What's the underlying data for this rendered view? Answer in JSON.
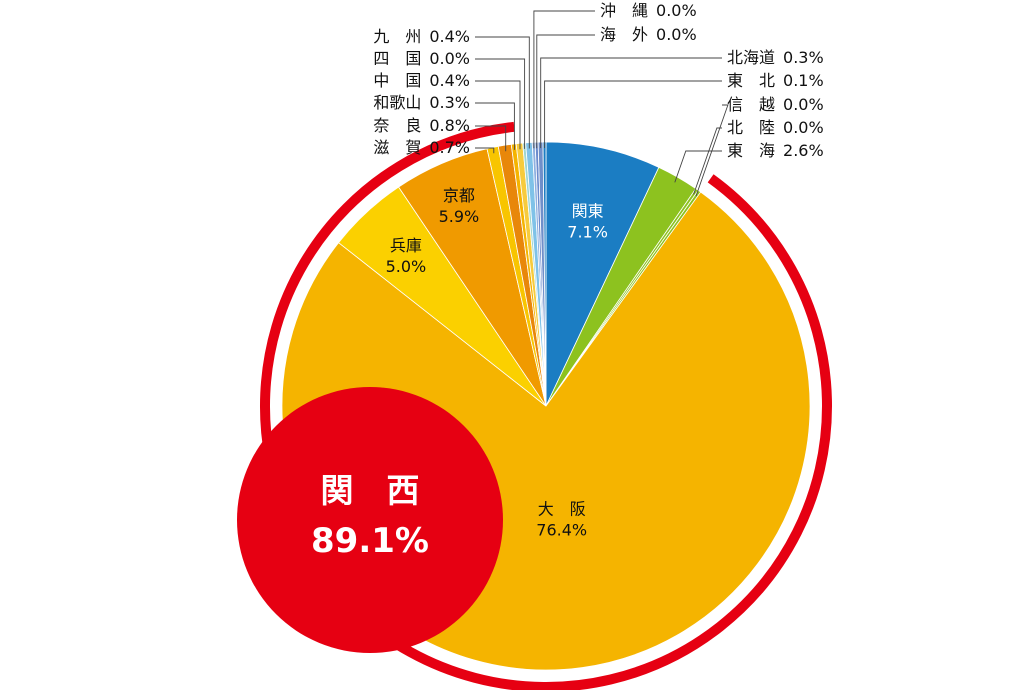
{
  "chart_data": {
    "type": "pie",
    "slices": [
      {
        "label": "関東",
        "name_line": "関東",
        "value": 7.1,
        "value_text": "7.1%",
        "color": "#1b7dc3",
        "labeling": "inside"
      },
      {
        "label": "東海",
        "name_line": "東　海",
        "value": 2.6,
        "value_text": "2.6%",
        "color": "#8dc21f",
        "labeling": "right"
      },
      {
        "label": "北陸",
        "name_line": "北　陸",
        "value": 0.0,
        "value_text": "0.0%",
        "color": "#8dc21f",
        "labeling": "right"
      },
      {
        "label": "信越",
        "name_line": "信　越",
        "value": 0.0,
        "value_text": "0.0%",
        "color": "#8dc21f",
        "labeling": "right"
      },
      {
        "label": "大阪",
        "name_line": "大　阪",
        "value": 76.4,
        "value_text": "76.4%",
        "color": "#f5b400",
        "labeling": "inside"
      },
      {
        "label": "兵庫",
        "name_line": "兵庫",
        "value": 5.0,
        "value_text": "5.0%",
        "color": "#fbd000",
        "labeling": "inside"
      },
      {
        "label": "京都",
        "name_line": "京都",
        "value": 5.9,
        "value_text": "5.9%",
        "color": "#f09a00",
        "labeling": "inside"
      },
      {
        "label": "滋賀",
        "name_line": "滋　賀",
        "value": 0.7,
        "value_text": "0.7%",
        "color": "#f8c500",
        "labeling": "left"
      },
      {
        "label": "奈良",
        "name_line": "奈　良",
        "value": 0.8,
        "value_text": "0.8%",
        "color": "#e8870a",
        "labeling": "left"
      },
      {
        "label": "和歌山",
        "name_line": "和歌山",
        "value": 0.3,
        "value_text": "0.3%",
        "color": "#f5b400",
        "labeling": "left"
      },
      {
        "label": "中国",
        "name_line": "中　国",
        "value": 0.4,
        "value_text": "0.4%",
        "color": "#f7cb3c",
        "labeling": "left"
      },
      {
        "label": "四国",
        "name_line": "四　国",
        "value": 0.0,
        "value_text": "0.0%",
        "color": "#9fd6d0",
        "labeling": "left"
      },
      {
        "label": "九州",
        "name_line": "九　州",
        "value": 0.4,
        "value_text": "0.4%",
        "color": "#7fc2e8",
        "labeling": "left"
      },
      {
        "label": "沖縄",
        "name_line": "沖　縄",
        "value": 0.0,
        "value_text": "0.0%",
        "color": "#8fb0e0",
        "labeling": "top"
      },
      {
        "label": "海外",
        "name_line": "海　外",
        "value": 0.0,
        "value_text": "0.0%",
        "color": "#6c8ccd",
        "labeling": "top"
      },
      {
        "label": "北海道",
        "name_line": "北海道",
        "value": 0.3,
        "value_text": "0.3%",
        "color": "#6f8fc9",
        "labeling": "right"
      },
      {
        "label": "東北",
        "name_line": "東　北",
        "value": 0.1,
        "value_text": "0.1%",
        "color": "#1b7dc3",
        "labeling": "right"
      }
    ],
    "highlight": {
      "label": "関　西",
      "value": 89.1,
      "value_text": "89.1%",
      "color": "#e60012"
    },
    "accent_colors": {
      "ring": "#e60012"
    }
  }
}
